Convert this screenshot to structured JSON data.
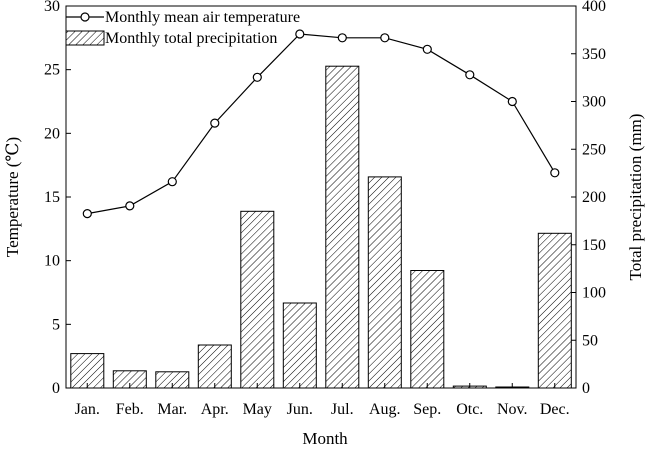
{
  "chart_data": {
    "type": "bar+line",
    "categories": [
      "Jan.",
      "Feb.",
      "Mar.",
      "Apr.",
      "May",
      "Jun.",
      "Jul.",
      "Aug.",
      "Sep.",
      "Otc.",
      "Nov.",
      "Dec."
    ],
    "xlabel": "Month",
    "ylabel_left": "Temperature (℃)",
    "ylabel_right": "Total precipitation (mm)",
    "ylim_left": [
      0,
      30
    ],
    "ylim_right": [
      0,
      400
    ],
    "yticks_left": [
      0,
      5,
      10,
      15,
      20,
      25,
      30
    ],
    "yticks_right": [
      0,
      50,
      100,
      150,
      200,
      250,
      300,
      350,
      400
    ],
    "grid": false,
    "legend_position": "top-left",
    "series": [
      {
        "name": "Monthly mean air temperature",
        "type": "line",
        "axis": "left",
        "marker": "open-circle",
        "color": "#000000",
        "values": [
          13.7,
          14.3,
          16.2,
          20.8,
          24.4,
          27.8,
          27.5,
          27.5,
          26.6,
          24.6,
          22.5,
          16.9
        ]
      },
      {
        "name": "Monthly total precipitation",
        "type": "bar",
        "axis": "right",
        "pattern": "diagonal-hatch",
        "color": "#000000",
        "values": [
          36,
          18,
          17,
          45,
          185,
          89,
          337,
          221,
          123,
          2,
          1,
          162
        ]
      }
    ]
  }
}
